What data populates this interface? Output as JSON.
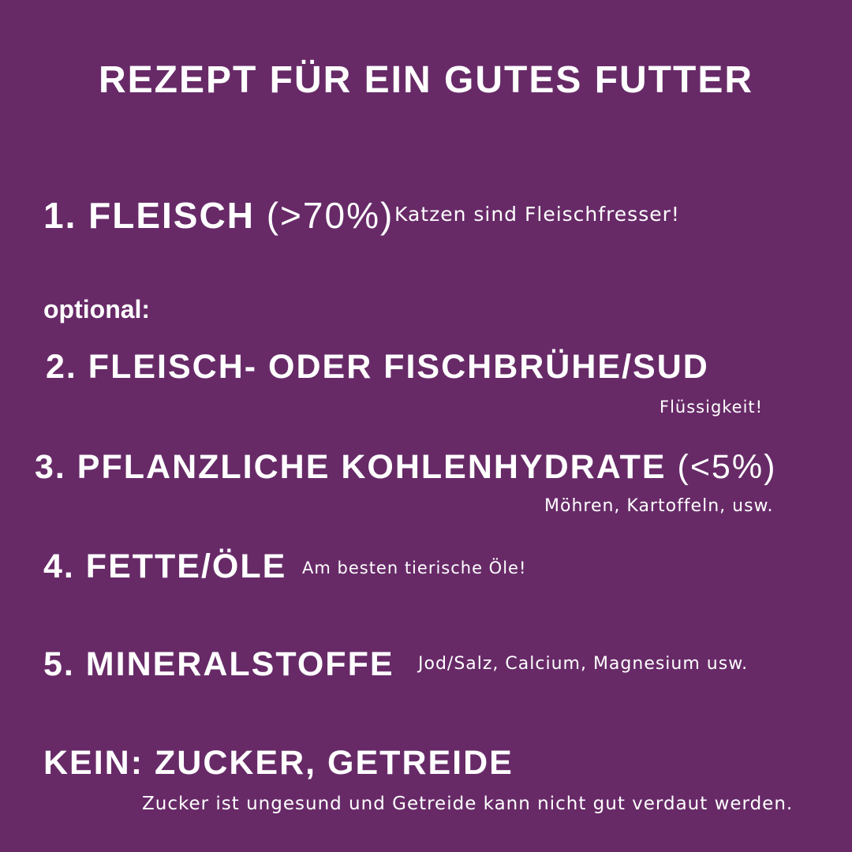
{
  "title": "Rezept für ein gutes Futter",
  "items": [
    {
      "label": "1. Fleisch",
      "suffix": " (>70%)",
      "note": "Katzen sind Fleischfresser!"
    },
    {
      "label": "2. Fleisch- oder Fischbrühe/Sud",
      "note": "Flüssigkeit!"
    },
    {
      "label": "3. Pflanzliche Kohlenhydrate",
      "suffix": " (<5%)",
      "note": "Möhren, Kartoffeln, usw."
    },
    {
      "label": "4. Fette/Öle",
      "note": "Am besten tierische Öle!"
    },
    {
      "label": "5. Mineralstoffe",
      "note": "Jod/Salz, Calcium, Magnesium usw."
    }
  ],
  "optional_label": "optional:",
  "exclusion": {
    "label": "Kein: Zucker, Getreide",
    "note": "Zucker ist ungesund und Getreide kann nicht gut verdaut werden."
  },
  "colors": {
    "background": "#672a67",
    "text": "#ffffff"
  }
}
